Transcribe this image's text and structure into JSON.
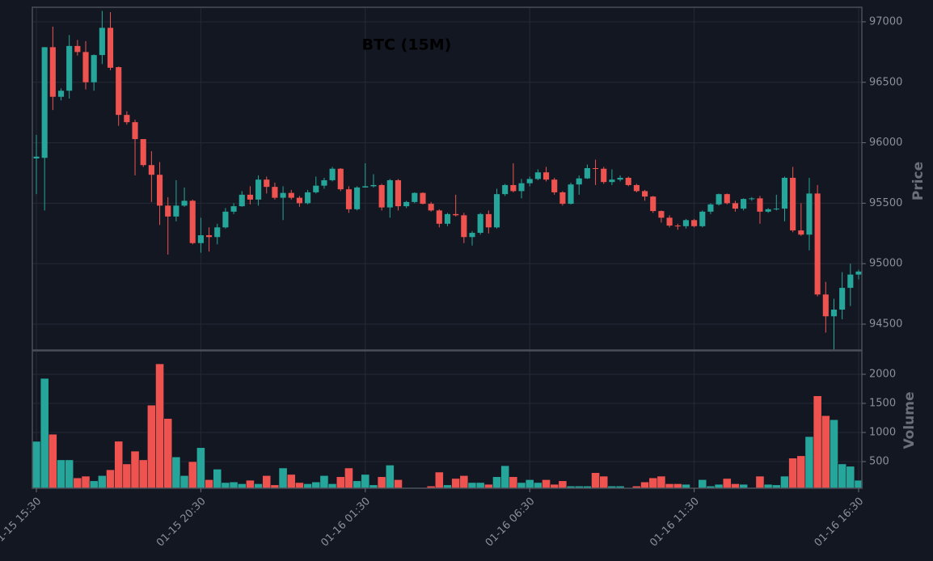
{
  "chart_data": {
    "type": "candlestick",
    "title": "BTC (15M)",
    "ylabel": "Price",
    "volume_label": "Volume",
    "categories": [
      "01-15 15:30",
      null,
      null,
      null,
      null,
      null,
      null,
      null,
      null,
      null,
      null,
      null,
      null,
      null,
      null,
      null,
      null,
      null,
      null,
      null,
      "01-15 20:30",
      null,
      null,
      null,
      null,
      null,
      null,
      null,
      null,
      null,
      null,
      null,
      null,
      null,
      null,
      null,
      null,
      null,
      null,
      null,
      "01-16 01:30",
      null,
      null,
      null,
      null,
      null,
      null,
      null,
      null,
      null,
      null,
      null,
      null,
      null,
      null,
      null,
      null,
      null,
      null,
      null,
      "01-16 06:30",
      null,
      null,
      null,
      null,
      null,
      null,
      null,
      null,
      null,
      null,
      null,
      null,
      null,
      null,
      null,
      null,
      null,
      null,
      null,
      "01-16 11:30",
      null,
      null,
      null,
      null,
      null,
      null,
      null,
      null,
      null,
      null,
      null,
      null,
      null,
      null,
      null,
      null,
      null,
      null,
      null,
      "01-16 16:30"
    ],
    "open": [
      95870,
      95875,
      96790,
      96380,
      96430,
      96800,
      96750,
      96500,
      96725,
      96950,
      96625,
      96230,
      96170,
      96030,
      95815,
      95735,
      95480,
      95390,
      95480,
      95520,
      95170,
      95235,
      95220,
      95300,
      95430,
      95475,
      95570,
      95530,
      95695,
      95635,
      95545,
      95585,
      95545,
      95500,
      95590,
      95645,
      95690,
      95785,
      95615,
      95450,
      95630,
      95640,
      95650,
      95465,
      95690,
      95475,
      95510,
      95585,
      95495,
      95440,
      95330,
      95410,
      95400,
      95220,
      95255,
      95410,
      95300,
      95575,
      95650,
      95600,
      95665,
      95700,
      95755,
      95695,
      95590,
      95495,
      95655,
      95705,
      95790,
      95785,
      95675,
      95695,
      95710,
      95650,
      95600,
      95555,
      95435,
      95380,
      95315,
      95310,
      95360,
      95310,
      95430,
      95490,
      95575,
      95500,
      95455,
      95535,
      95540,
      95430,
      95450,
      95455,
      95710,
      95275,
      95240,
      95580,
      94745,
      94565,
      94620,
      94800,
      94910
    ],
    "high": [
      96065,
      96790,
      96960,
      96450,
      96890,
      96850,
      96840,
      96730,
      97090,
      97080,
      96630,
      96260,
      96190,
      96030,
      95930,
      95840,
      95550,
      95690,
      95630,
      95530,
      95380,
      95300,
      95330,
      95460,
      95500,
      95600,
      95640,
      95730,
      95720,
      95670,
      95640,
      95610,
      95560,
      95610,
      95720,
      95710,
      95800,
      95790,
      95640,
      95640,
      95830,
      95740,
      95660,
      95700,
      95700,
      95520,
      95590,
      95590,
      95510,
      95450,
      95420,
      95570,
      95420,
      95270,
      95420,
      95440,
      95620,
      95660,
      95830,
      95700,
      95720,
      95780,
      95800,
      95710,
      95600,
      95670,
      95730,
      95820,
      95860,
      95800,
      95780,
      95730,
      95720,
      95660,
      95610,
      95560,
      95440,
      95400,
      95330,
      95370,
      95370,
      95440,
      95500,
      95580,
      95580,
      95520,
      95540,
      95550,
      95560,
      95460,
      95570,
      95720,
      95800,
      95500,
      95710,
      95650,
      94850,
      94710,
      94930,
      95000,
      94950
    ],
    "low": [
      95575,
      95440,
      96270,
      96350,
      96365,
      96720,
      96440,
      96430,
      96650,
      96600,
      96140,
      96150,
      95730,
      95800,
      95510,
      95320,
      95075,
      95350,
      95470,
      95160,
      95090,
      95100,
      95160,
      95290,
      95410,
      95470,
      95490,
      95480,
      95580,
      95530,
      95360,
      95530,
      95470,
      95490,
      95580,
      95620,
      95680,
      95600,
      95420,
      95440,
      95630,
      95630,
      95440,
      95380,
      95440,
      95460,
      95500,
      95490,
      95430,
      95300,
      95310,
      95390,
      95170,
      95150,
      95240,
      95250,
      95290,
      95560,
      95590,
      95540,
      95640,
      95690,
      95680,
      95570,
      95480,
      95490,
      95570,
      95700,
      95650,
      95660,
      95650,
      95680,
      95640,
      95590,
      95520,
      95420,
      95340,
      95300,
      95280,
      95290,
      95300,
      95300,
      95410,
      95480,
      95490,
      95430,
      95440,
      95520,
      95330,
      95420,
      95440,
      95350,
      95260,
      95230,
      95110,
      94730,
      94430,
      94290,
      94540,
      94650,
      94870
    ],
    "close": [
      95885,
      96790,
      96380,
      96430,
      96800,
      96750,
      96500,
      96725,
      96950,
      96620,
      96230,
      96170,
      96030,
      95815,
      95735,
      95480,
      95390,
      95480,
      95520,
      95170,
      95235,
      95220,
      95300,
      95430,
      95475,
      95570,
      95530,
      95695,
      95635,
      95545,
      95585,
      95545,
      95500,
      95590,
      95645,
      95690,
      95785,
      95615,
      95450,
      95630,
      95640,
      95650,
      95465,
      95690,
      95475,
      95510,
      95585,
      95495,
      95440,
      95330,
      95410,
      95400,
      95220,
      95255,
      95410,
      95300,
      95575,
      95650,
      95600,
      95665,
      95700,
      95755,
      95695,
      95590,
      95495,
      95655,
      95705,
      95790,
      95785,
      95675,
      95695,
      95710,
      95650,
      95600,
      95555,
      95435,
      95380,
      95315,
      95310,
      95360,
      95310,
      95430,
      95490,
      95575,
      95500,
      95455,
      95535,
      95540,
      95430,
      95450,
      95455,
      95710,
      95275,
      95240,
      95580,
      94745,
      94565,
      94620,
      94800,
      94910,
      94935
    ],
    "volume": [
      848,
      1930,
      970,
      530,
      530,
      220,
      250,
      170,
      260,
      360,
      850,
      460,
      680,
      530,
      1470,
      2180,
      1240,
      580,
      260,
      500,
      740,
      190,
      370,
      140,
      150,
      120,
      180,
      120,
      260,
      100,
      390,
      280,
      140,
      120,
      150,
      260,
      120,
      240,
      390,
      170,
      280,
      100,
      240,
      440,
      190,
      55,
      55,
      55,
      80,
      320,
      100,
      210,
      260,
      140,
      140,
      110,
      240,
      430,
      240,
      140,
      190,
      140,
      190,
      110,
      170,
      80,
      80,
      80,
      310,
      250,
      80,
      80,
      45,
      80,
      150,
      220,
      250,
      120,
      120,
      110,
      55,
      190,
      80,
      110,
      210,
      120,
      110,
      55,
      250,
      110,
      100,
      250,
      560,
      600,
      930,
      1630,
      1290,
      1220,
      460,
      420,
      180
    ],
    "up_color": "#26a69a",
    "down_color": "#ef5350",
    "ylim": [
      94286,
      97120
    ],
    "yticks": [
      94500,
      95000,
      95500,
      96000,
      96500,
      97000
    ],
    "volume_ylim": [
      42,
      2403
    ],
    "volume_yticks": [
      500,
      1000,
      1500,
      2000
    ],
    "grid": true
  }
}
